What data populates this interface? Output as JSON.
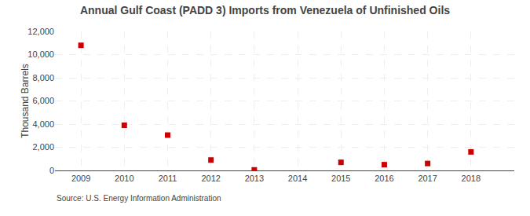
{
  "chart_data": {
    "type": "scatter",
    "title": "Annual Gulf Coast (PADD 3) Imports from Venezuela of Unfinished Oils",
    "ylabel": "Thousand Barrels",
    "annotations": [
      "Source: U.S. Energy Information Administration"
    ],
    "x": [
      2009,
      2010,
      2011,
      2012,
      2013,
      2015,
      2016,
      2017,
      2018
    ],
    "values": [
      10800,
      3900,
      3050,
      900,
      50,
      700,
      500,
      600,
      1600
    ],
    "color": "#cc0000",
    "marker": "square",
    "xlim": [
      2008.4,
      2019.0
    ],
    "xticks": [
      2009,
      2010,
      2011,
      2012,
      2013,
      2014,
      2015,
      2016,
      2017,
      2018
    ],
    "ylim": [
      0,
      12000
    ],
    "yticks": [
      0,
      {
        "value": 2000,
        "label": "2,000"
      },
      {
        "value": 4000,
        "label": "4,000"
      },
      {
        "value": 6000,
        "label": "6,000"
      },
      {
        "value": 8000,
        "label": "8,000"
      },
      {
        "value": 10000,
        "label": "10,000"
      },
      {
        "value": 12000,
        "label": "12,000"
      }
    ],
    "grid": true
  }
}
